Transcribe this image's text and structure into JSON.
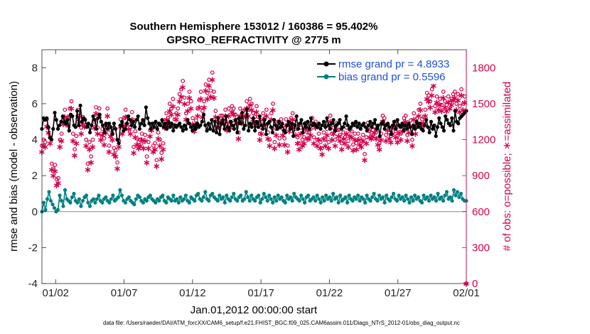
{
  "chart_data": {
    "type": "line",
    "title_lines": [
      "Southern Hemisphere 153012 / 160386 = 95.402%",
      "GPSRO_REFRACTIVITY @ 2775 m"
    ],
    "xlabel": "Jan.01,2012 00:00:00 start",
    "ylabel_left": "rmse and bias (model - observation)",
    "ylabel_right": "# of obs: o=possible; ∗=assimilated",
    "footer": "data file: /Users/raeder/DAI/ATM_forcXX/CAM6_setup/f.e21.FHIST_BGC.f09_025.CAM6assim.011/Diags_NTrS_2012-01/obs_diag_output.nc",
    "x_range": [
      0,
      31
    ],
    "x_ticks": [
      {
        "value": 1,
        "label": "01/02"
      },
      {
        "value": 6,
        "label": "01/07"
      },
      {
        "value": 11,
        "label": "01/12"
      },
      {
        "value": 16,
        "label": "01/17"
      },
      {
        "value": 21,
        "label": "01/22"
      },
      {
        "value": 26,
        "label": "01/27"
      },
      {
        "value": 31,
        "label": "02/01"
      }
    ],
    "ylim_left": [
      -4,
      9
    ],
    "yticks_left": [
      -4,
      -2,
      0,
      2,
      4,
      6,
      8
    ],
    "ylim_right": [
      0,
      1950
    ],
    "yticks_right": [
      0,
      300,
      600,
      900,
      1200,
      1500,
      1800
    ],
    "series": [
      {
        "name": "rmse grand pr = 4.8933",
        "axis": "left",
        "marker": "dot",
        "values": [
          4.6,
          5.2,
          5.1,
          5.2,
          4.7,
          4.1,
          4.0,
          4.6,
          5.5,
          5.1,
          4.6,
          4.8,
          5.0,
          5.3,
          5.0,
          4.9,
          5.1,
          4.5,
          5.4,
          5.3,
          4.8,
          4.7,
          5.6,
          4.8,
          5.9,
          5.0,
          5.2,
          5.1,
          4.7,
          4.9,
          4.4,
          4.8,
          5.3,
          5.1,
          4.6,
          5.2,
          5.4,
          5.0,
          4.8,
          4.4,
          4.9,
          4.6,
          4.9,
          4.7,
          4.3,
          4.9,
          4.6,
          4.0,
          3.8,
          4.8,
          5.0,
          4.5,
          4.6,
          4.9,
          5.3,
          5.1,
          4.8,
          5.0,
          4.7,
          5.1,
          5.3,
          4.6,
          4.9,
          5.1,
          4.8,
          5.8,
          5.2,
          4.9,
          4.6,
          4.9,
          4.7,
          5.0,
          4.6,
          4.9,
          4.8,
          5.1,
          4.7,
          4.9,
          4.6,
          5.0,
          4.7,
          4.9,
          4.5,
          4.8,
          4.7,
          4.8,
          4.9,
          4.7,
          4.5,
          4.8,
          4.6,
          5.1,
          4.9,
          4.7,
          4.5,
          4.8,
          4.6,
          4.9,
          4.7,
          4.8,
          5.0,
          5.4,
          4.8,
          4.5,
          4.9,
          4.6,
          5.1,
          4.5,
          5.0,
          4.4,
          5.2,
          4.3,
          4.9,
          5.1,
          4.6,
          5.3,
          4.7,
          4.5,
          5.0,
          4.8,
          4.6,
          5.1,
          4.4,
          5.2,
          4.9,
          5.5,
          4.6,
          4.8,
          5.7,
          4.5,
          4.9,
          4.7,
          5.2,
          4.5,
          5.0,
          4.7,
          5.3,
          4.8,
          4.6,
          5.1,
          4.3,
          4.9,
          5.0,
          4.7,
          4.4,
          5.1,
          4.8,
          4.6,
          5.0,
          4.7,
          4.9,
          4.5,
          4.4,
          4.8,
          5.0,
          4.6,
          4.9,
          4.2,
          4.8,
          5.3,
          4.6,
          4.9,
          5.1,
          4.4,
          4.9,
          4.7,
          5.0,
          4.6,
          5.2,
          4.8,
          4.9,
          4.8,
          4.7,
          4.9,
          4.6,
          4.8,
          5.0,
          4.7,
          5.2,
          4.8,
          4.6,
          4.9,
          5.1,
          4.5,
          4.8,
          4.9,
          5.1,
          4.6,
          4.7,
          4.9,
          5.3,
          4.8,
          4.6,
          4.7,
          4.9,
          4.8,
          5.0,
          4.7,
          4.9,
          4.6,
          4.8,
          4.9,
          4.7,
          4.5,
          4.8,
          5.0,
          4.7,
          4.9,
          5.1,
          4.6,
          4.8,
          4.2,
          4.9,
          5.0,
          4.6,
          4.8,
          4.9,
          4.7,
          4.3,
          4.8,
          5.0,
          4.6,
          5.1,
          4.8,
          4.7,
          4.9,
          4.5,
          4.8,
          4.6,
          4.9,
          4.7,
          4.3,
          4.8,
          4.6,
          5.0,
          4.7,
          4.9,
          4.6,
          4.5,
          4.8,
          5.1,
          4.7,
          4.4,
          5.0,
          4.6,
          4.8,
          4.2,
          4.7,
          5.2,
          4.9,
          4.7,
          4.5,
          5.3,
          5.1,
          4.9,
          4.8,
          5.2,
          4.5,
          5.6,
          5.0,
          4.9,
          5.2,
          5.3,
          5.4,
          5.5,
          5.6
        ]
      },
      {
        "name": "bias grand pr = 0.5596",
        "axis": "left",
        "marker": "dot",
        "values": [
          0.0,
          0.5,
          0.1,
          0.7,
          1.1,
          0.6,
          0.4,
          0.2,
          0.0,
          0.1,
          0.9,
          0.6,
          0.3,
          1.2,
          0.7,
          0.6,
          0.5,
          0.8,
          1.0,
          0.6,
          0.5,
          0.7,
          0.3,
          0.6,
          0.8,
          0.9,
          0.5,
          0.3,
          0.6,
          0.7,
          0.5,
          0.7,
          0.9,
          0.6,
          0.5,
          0.7,
          0.8,
          0.6,
          0.5,
          0.7,
          0.9,
          0.6,
          0.7,
          0.8,
          1.2,
          0.9,
          0.6,
          0.5,
          0.7,
          0.8,
          0.6,
          0.5,
          0.4,
          0.7,
          0.9,
          0.8,
          0.6,
          0.5,
          0.7,
          0.6,
          0.8,
          0.9,
          0.7,
          0.6,
          0.5,
          0.7,
          0.6,
          0.8,
          0.9,
          0.6,
          0.5,
          0.8,
          0.7,
          0.6,
          0.9,
          0.6,
          0.7,
          0.5,
          0.8,
          0.6,
          0.7,
          0.9,
          0.6,
          0.5,
          0.8,
          0.7,
          0.6,
          0.9,
          1.0,
          0.7,
          0.6,
          0.8,
          1.1,
          0.7,
          0.6,
          0.9,
          1.0,
          0.8,
          0.7,
          0.6,
          0.9,
          0.7,
          0.8,
          0.5,
          0.9,
          0.7,
          0.6,
          0.8,
          1.0,
          0.7,
          0.6,
          0.8,
          0.9,
          0.6,
          0.7,
          1.1,
          0.8,
          0.6,
          0.9,
          0.7,
          0.6,
          0.8,
          0.9,
          0.5,
          0.7,
          1.0,
          0.8,
          0.6,
          0.9,
          0.7,
          0.5,
          0.8,
          0.6,
          0.9,
          0.7,
          0.8,
          0.6,
          0.5,
          0.9,
          0.7,
          0.8,
          0.6,
          1.0,
          0.8,
          0.7,
          0.6,
          0.9,
          0.7,
          0.5,
          0.8,
          0.9,
          0.6,
          0.7,
          0.8,
          0.6,
          0.9,
          0.7,
          0.5,
          0.8,
          0.6,
          0.9,
          0.7,
          0.8,
          0.6,
          1.0,
          0.7,
          0.8,
          0.5,
          0.9,
          0.6,
          0.7,
          0.8,
          0.5,
          0.9,
          0.7,
          0.6,
          0.8,
          0.7,
          0.9,
          0.6,
          0.8,
          0.7,
          0.5,
          0.9,
          0.7,
          0.6,
          0.8,
          1.0,
          0.7,
          0.6,
          0.9,
          0.7,
          0.8,
          0.5,
          0.9,
          0.7,
          0.6,
          0.8,
          1.0,
          0.7,
          0.6,
          0.9,
          0.7,
          0.8,
          0.6,
          0.9,
          0.7,
          0.5,
          0.8,
          0.6,
          0.9,
          0.7,
          0.8,
          0.6,
          0.5,
          0.9,
          0.7,
          0.8,
          0.6,
          0.9,
          0.7,
          0.8,
          0.6,
          1.0,
          0.7,
          0.8,
          0.6,
          0.9,
          1.1,
          0.7,
          0.8,
          0.6,
          1.2,
          0.9,
          1.1,
          0.8,
          1.0,
          0.7,
          0.6,
          0.6
        ]
      },
      {
        "name": "possible",
        "axis": "right",
        "marker": "o",
        "values": [
          1150,
          1200,
          1180,
          1370,
          1300,
          1220,
          1000,
          960,
          990,
          870,
          880,
          1200,
          1250,
          1390,
          1450,
          1380,
          1380,
          1460,
          1520,
          1250,
          1120,
          1230,
          1450,
          1400,
          1300,
          1390,
          1370,
          1200,
          1000,
          1180,
          1060,
          1200,
          1350,
          1470,
          1300,
          1460,
          1250,
          1290,
          1210,
          1320,
          1460,
          1150,
          1280,
          1250,
          1130,
          1110,
          1010,
          1190,
          1370,
          1310,
          1380,
          1450,
          1390,
          1350,
          1300,
          1430,
          1140,
          1270,
          1210,
          1180,
          1200,
          1250,
          1180,
          1240,
          1060,
          1180,
          1280,
          1330,
          1150,
          1170,
          1030,
          1260,
          1200,
          1090,
          1170,
          1350,
          1420,
          1380,
          1500,
          1460,
          1540,
          1370,
          1420,
          1460,
          1580,
          1620,
          1690,
          1550,
          1420,
          1500,
          1600,
          1520,
          1380,
          1320,
          1360,
          1460,
          1530,
          1600,
          1440,
          1520,
          1660,
          1590,
          1700,
          1610,
          1760,
          1600,
          1440,
          1350,
          1360,
          1400,
          1400,
          1380,
          1450,
          1330,
          1460,
          1350,
          1480,
          1460,
          1410,
          1390,
          1260,
          1460,
          1390,
          1440,
          1450,
          1520,
          1450,
          1540,
          1500,
          1420,
          1390,
          1480,
          1390,
          1250,
          1300,
          1420,
          1380,
          1450,
          1260,
          1200,
          1420,
          1500,
          1180,
          1290,
          1350,
          1210,
          1370,
          1290,
          1210,
          1370,
          1150,
          1320,
          1380,
          1420,
          1350,
          1290,
          1220,
          1170,
          1300,
          1200,
          1220,
          1340,
          1260,
          1260,
          1290,
          1380,
          1220,
          1350,
          1200,
          1250,
          1180,
          1130,
          1260,
          1200,
          1290,
          1180,
          1400,
          1250,
          1300,
          1200,
          1340,
          1280,
          1240,
          1170,
          1260,
          1220,
          1300,
          1190,
          1280,
          1270,
          1160,
          1250,
          1170,
          1250,
          1210,
          1190,
          1240,
          1080,
          1220,
          1340,
          1270,
          1260,
          1280,
          1310,
          1260,
          1210,
          1170,
          1250,
          1400,
          1380,
          1240,
          1330,
          1260,
          1230,
          1300,
          1350,
          1270,
          1230,
          1310,
          1250,
          1320,
          1380,
          1400,
          1240,
          1310,
          1360,
          1200,
          1420,
          1300,
          1380,
          1450,
          1500,
          1370,
          1390,
          1450,
          1590,
          1570,
          1520,
          1620,
          1700,
          1480,
          1560,
          1500,
          1540,
          1490,
          1600,
          1520,
          1490,
          1560,
          1510,
          1540,
          1580,
          1600,
          1500,
          1580,
          1480,
          1620,
          1500,
          1560,
          0
        ]
      },
      {
        "name": "assimilated",
        "axis": "right",
        "marker": "star",
        "values": [
          1100,
          1150,
          1140,
          1310,
          1260,
          1170,
          950,
          900,
          940,
          820,
          840,
          1140,
          1190,
          1330,
          1390,
          1330,
          1320,
          1400,
          1460,
          1190,
          1070,
          1170,
          1390,
          1350,
          1250,
          1330,
          1310,
          1150,
          950,
          1120,
          1010,
          1140,
          1300,
          1420,
          1250,
          1400,
          1200,
          1240,
          1160,
          1260,
          1400,
          1100,
          1230,
          1200,
          1080,
          1060,
          960,
          1140,
          1310,
          1250,
          1320,
          1390,
          1330,
          1290,
          1250,
          1370,
          1090,
          1220,
          1160,
          1130,
          1150,
          1200,
          1130,
          1190,
          1010,
          1130,
          1230,
          1280,
          1100,
          1120,
          980,
          1210,
          1150,
          1040,
          1120,
          1300,
          1370,
          1330,
          1440,
          1410,
          1480,
          1320,
          1370,
          1410,
          1520,
          1560,
          1640,
          1500,
          1370,
          1440,
          1550,
          1460,
          1330,
          1270,
          1310,
          1400,
          1470,
          1540,
          1390,
          1470,
          1610,
          1540,
          1650,
          1560,
          1700,
          1550,
          1390,
          1300,
          1310,
          1350,
          1350,
          1330,
          1400,
          1280,
          1400,
          1300,
          1430,
          1410,
          1360,
          1340,
          1210,
          1400,
          1340,
          1390,
          1400,
          1460,
          1400,
          1490,
          1450,
          1370,
          1340,
          1430,
          1340,
          1200,
          1250,
          1370,
          1330,
          1400,
          1210,
          1150,
          1370,
          1450,
          1130,
          1240,
          1300,
          1160,
          1320,
          1240,
          1160,
          1320,
          1100,
          1270,
          1330,
          1370,
          1300,
          1240,
          1170,
          1120,
          1250,
          1150,
          1170,
          1290,
          1210,
          1210,
          1240,
          1330,
          1170,
          1300,
          1150,
          1200,
          1130,
          1080,
          1210,
          1150,
          1240,
          1130,
          1350,
          1200,
          1250,
          1150,
          1290,
          1230,
          1190,
          1120,
          1210,
          1170,
          1250,
          1140,
          1230,
          1220,
          1110,
          1200,
          1120,
          1200,
          1160,
          1140,
          1190,
          1030,
          1170,
          1290,
          1220,
          1210,
          1230,
          1260,
          1210,
          1160,
          1120,
          1200,
          1350,
          1330,
          1190,
          1280,
          1210,
          1180,
          1250,
          1300,
          1220,
          1180,
          1260,
          1200,
          1270,
          1330,
          1350,
          1190,
          1260,
          1310,
          1150,
          1370,
          1250,
          1330,
          1400,
          1450,
          1320,
          1340,
          1400,
          1540,
          1520,
          1470,
          1570,
          1650,
          1430,
          1510,
          1450,
          1490,
          1440,
          1550,
          1470,
          1440,
          1510,
          1460,
          1490,
          1530,
          1550,
          1450,
          1530,
          1430,
          1570,
          1450,
          1510,
          0
        ]
      }
    ]
  },
  "legend": {
    "rmse_label": "rmse grand pr = 4.8933",
    "bias_label": "bias grand pr = 0.5596",
    "placement": "top-right"
  },
  "colors": {
    "rmse": "#000000",
    "bias": "#008080",
    "obs": "#d6004c",
    "zero_line": "#a0a0a0",
    "legend_text": "#1f4fe0",
    "axis": "#262626"
  }
}
